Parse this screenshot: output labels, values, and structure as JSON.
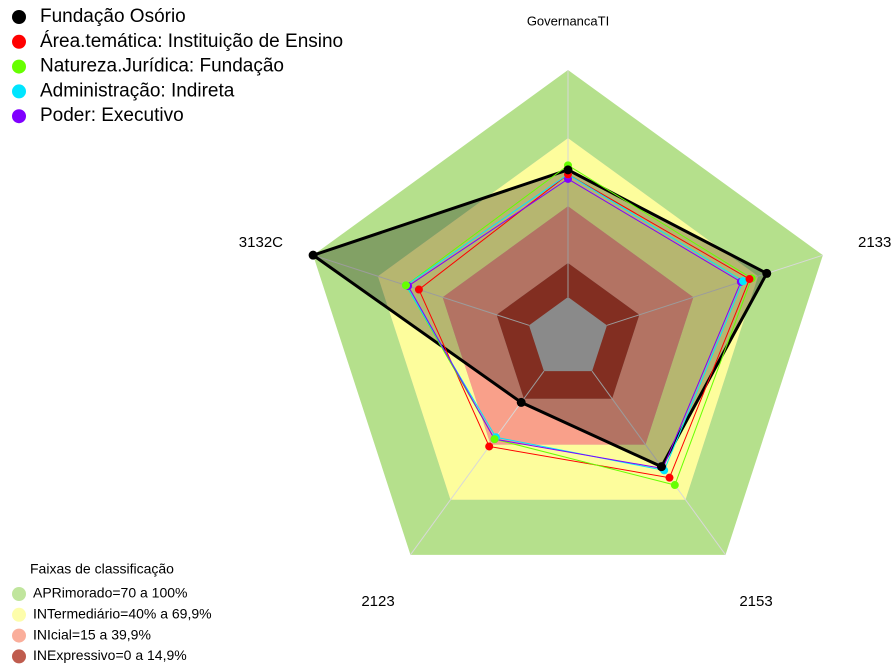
{
  "chart_data": {
    "type": "radar",
    "axes": [
      "GovernancaTI",
      "2133",
      "2153",
      "2123",
      "3132C"
    ],
    "rlim": [
      0,
      100
    ],
    "bands_title": "Faixas de classificação",
    "bands": [
      {
        "name": "APRimorado=70 a 100%",
        "color": "#b5e08c",
        "range": [
          70,
          100
        ]
      },
      {
        "name": "INTermediário=40% a 69,9%",
        "color": "#fdfd9c",
        "range": [
          40,
          70
        ]
      },
      {
        "name": "INIcial=15 a 39,9%",
        "color": "#f9a08a",
        "range": [
          15,
          40
        ]
      },
      {
        "name": "INExpressivo=0 a 14,9%",
        "color": "#b4402f",
        "range": [
          0,
          15
        ]
      }
    ],
    "series": [
      {
        "name": "Fundação Osório",
        "color": "#000000",
        "values": [
          56,
          74,
          52,
          17,
          100
        ]
      },
      {
        "name": "Área.temática: Instituição de Ensino",
        "color": "#ff0000",
        "values": [
          54,
          66,
          58,
          41,
          51
        ]
      },
      {
        "name": "Natureza.Jurídica: Fundação",
        "color": "#66ff00",
        "values": [
          58,
          67,
          62,
          37,
          57
        ]
      },
      {
        "name": "Administração: Indireta",
        "color": "#00e5ff",
        "values": [
          54,
          63,
          54,
          36,
          57
        ]
      },
      {
        "name": "Poder: Executivo",
        "color": "#8000ff",
        "values": [
          52,
          62,
          53,
          37,
          56
        ]
      }
    ]
  }
}
